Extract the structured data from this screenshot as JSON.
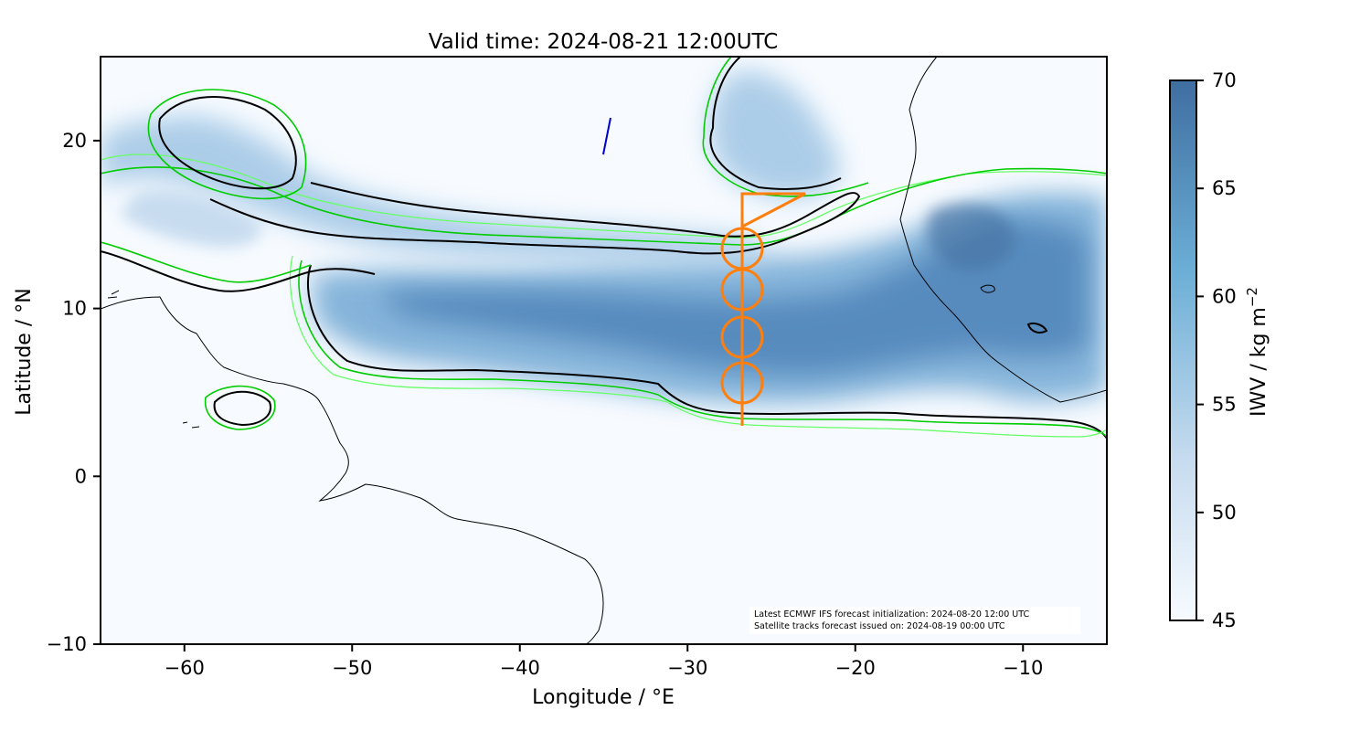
{
  "title": "Valid time: 2024-08-21 12:00UTC",
  "x_axis": {
    "label": "Longitude / °E",
    "range": [
      -65,
      -5
    ],
    "ticks": [
      -60,
      -50,
      -40,
      -30,
      -20,
      -10
    ],
    "tick_labels": [
      "−60",
      "−50",
      "−40",
      "−30",
      "−20",
      "−10"
    ]
  },
  "y_axis": {
    "label": "Latitude / °N",
    "range": [
      -10,
      25
    ],
    "ticks": [
      -10,
      0,
      10,
      20
    ],
    "tick_labels": [
      "−10",
      "0",
      "10",
      "20"
    ]
  },
  "colorbar": {
    "label": "IWV / kg m",
    "label_superscript": "−2",
    "range": [
      45,
      70
    ],
    "ticks": [
      45,
      50,
      55,
      60,
      65,
      70
    ],
    "colors": [
      "#f7fbff",
      "#c6dbef",
      "#6baed6",
      "#3f6ea0"
    ]
  },
  "annotation": {
    "line1": "Latest ECMWF IFS forecast initialization: 2024-08-20 12:00 UTC",
    "line2": "Satellite tracks forecast issued on: 2024-08-19 00:00 UTC"
  },
  "colors": {
    "contour_dark": "#000000",
    "contour_green": "#00cc00",
    "contour_lightgreen": "#66ff66",
    "flight_track": "#ff7f0e",
    "satellite_track": "#0000cc",
    "coastline": "#000000"
  },
  "chart_data": {
    "type": "heatmap",
    "variable": "IWV",
    "units": "kg m^-2",
    "flight_track": {
      "lon": [
        -26.8,
        -26.8,
        -22.9,
        -26.8
      ],
      "lat": [
        3.0,
        16.8,
        16.8,
        14.8
      ],
      "circles": [
        {
          "lon": -26.8,
          "lat": 13.6,
          "radius_deg": 1.2
        },
        {
          "lon": -26.8,
          "lat": 11.1,
          "radius_deg": 1.2
        },
        {
          "lon": -26.8,
          "lat": 8.3,
          "radius_deg": 1.2
        },
        {
          "lon": -26.8,
          "lat": 5.5,
          "radius_deg": 1.2
        }
      ]
    },
    "satellite_track": {
      "lon": [
        -35.1,
        -34.5
      ],
      "lat": [
        19.2,
        21.4
      ]
    },
    "moist_band": {
      "approx_lat_range": [
        4,
        14
      ],
      "approx_lon_range": [
        -55,
        -5
      ]
    }
  }
}
